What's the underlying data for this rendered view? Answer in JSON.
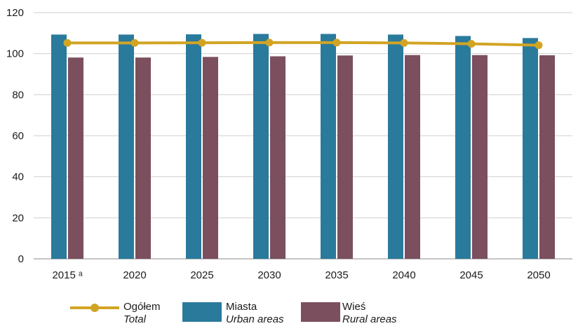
{
  "chart_data": {
    "type": "bar",
    "categories": [
      "2015 ᵃ",
      "2020",
      "2025",
      "2030",
      "2035",
      "2040",
      "2045",
      "2050"
    ],
    "series": [
      {
        "name": "Miasta",
        "name_en": "Urban areas",
        "kind": "bar",
        "color": "#2a7a9c",
        "values": [
          109.3,
          109.3,
          109.4,
          109.6,
          109.6,
          109.3,
          108.6,
          107.6
        ]
      },
      {
        "name": "Wieś",
        "name_en": "Rural areas",
        "kind": "bar",
        "color": "#7b4f5e",
        "values": [
          98.1,
          98.1,
          98.4,
          98.7,
          99.1,
          99.3,
          99.3,
          99.2
        ]
      },
      {
        "name": "Ogółem",
        "name_en": "Total",
        "kind": "line",
        "color": "#d2a424",
        "values": [
          105.2,
          105.2,
          105.3,
          105.4,
          105.4,
          105.2,
          104.8,
          104.1
        ]
      }
    ],
    "y_ticks": [
      0,
      20,
      40,
      60,
      80,
      100,
      120
    ],
    "ylim": [
      0,
      120
    ],
    "grid": true,
    "legend_position": "bottom"
  },
  "legend": [
    {
      "label": "Ogółem",
      "label_en": "Total",
      "color": "#d2a424",
      "kind": "line"
    },
    {
      "label": "Miasta",
      "label_en": "Urban areas",
      "color": "#2a7a9c",
      "kind": "bar"
    },
    {
      "label": "Wieś",
      "label_en": "Rural areas",
      "color": "#7b4f5e",
      "kind": "bar"
    }
  ]
}
